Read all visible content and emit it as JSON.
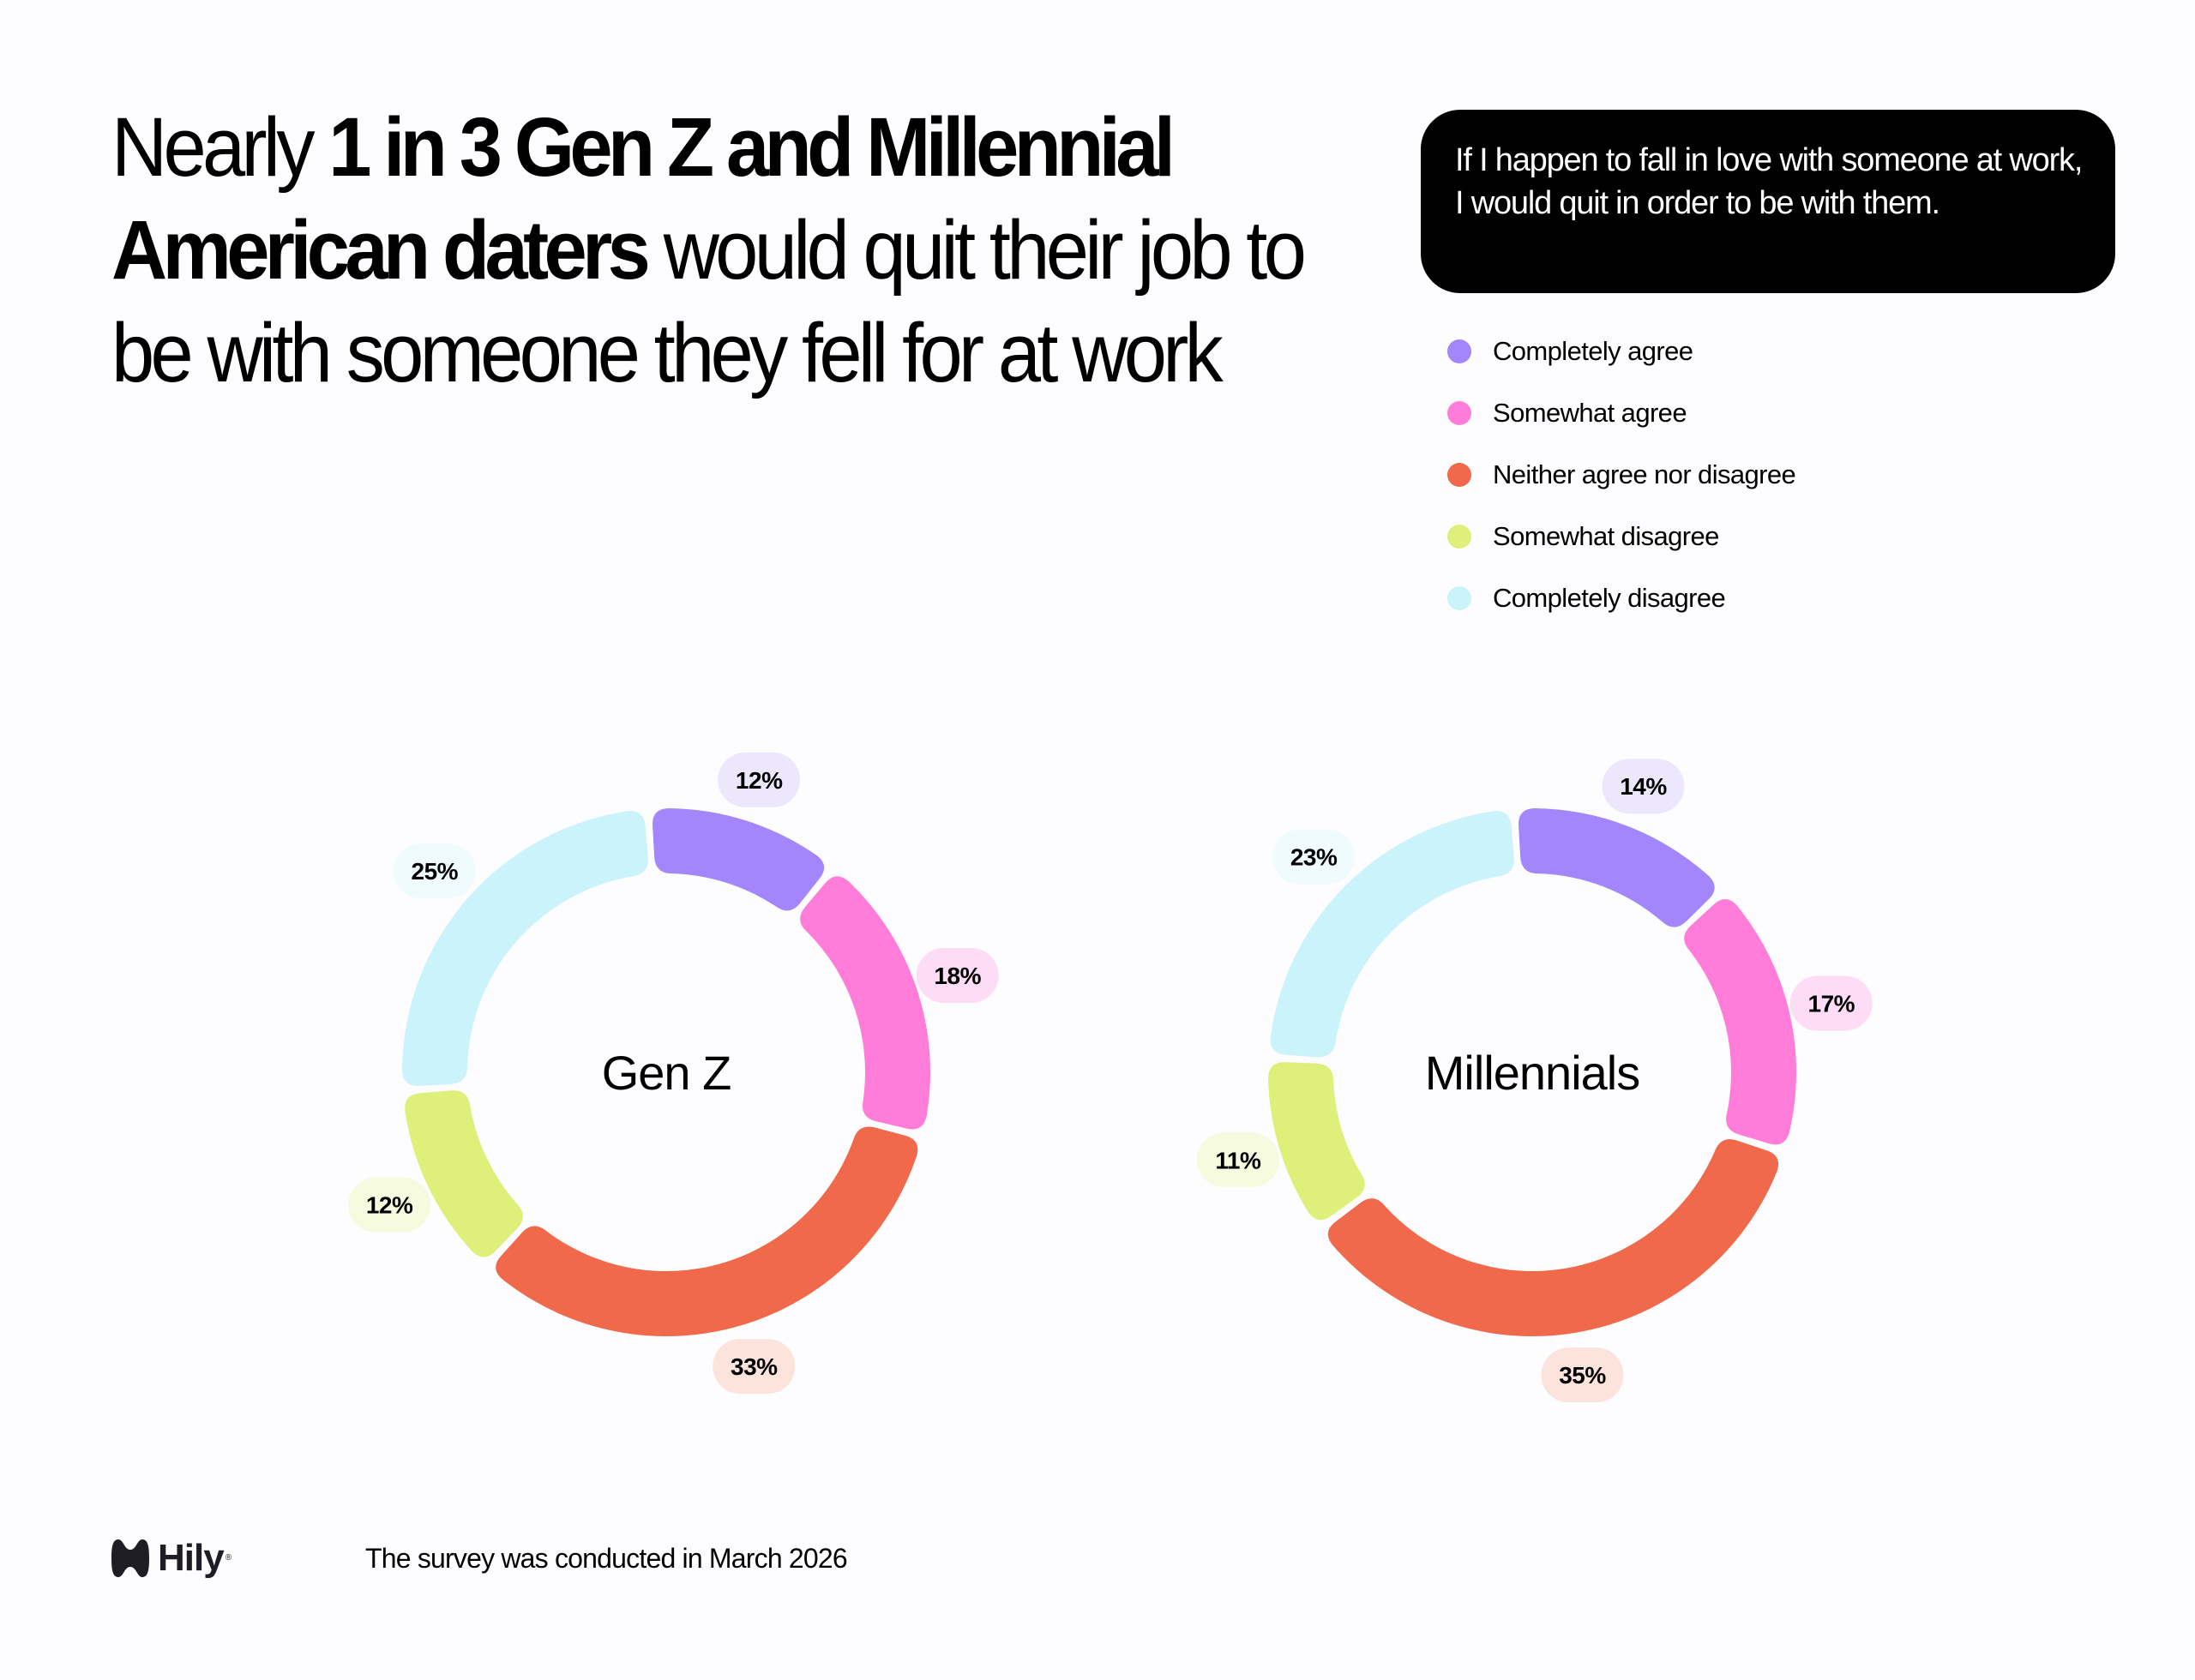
{
  "headline": {
    "prefix": "Nearly ",
    "emphasis": "1 in 3 Gen Z and Millennial American daters",
    "suffix": " would quit their job to be with someone they fell for at work"
  },
  "question": "If I happen to fall in love with someone at work, I would quit in order to be with them.",
  "legend": [
    {
      "label": "Completely agree",
      "color": "#A385FC"
    },
    {
      "label": "Somewhat agree",
      "color": "#FF7DD8"
    },
    {
      "label": "Neither agree nor disagree",
      "color": "#F0694A"
    },
    {
      "label": "Somewhat disagree",
      "color": "#DFF07A"
    },
    {
      "label": "Completely disagree",
      "color": "#CBF3FC"
    }
  ],
  "chart_data": [
    {
      "type": "pie",
      "variant": "donut",
      "title": "Gen Z",
      "categories": [
        "Completely agree",
        "Somewhat agree",
        "Neither agree nor disagree",
        "Somewhat disagree",
        "Completely disagree"
      ],
      "values": [
        12,
        18,
        33,
        12,
        25
      ],
      "labels": [
        "12%",
        "18%",
        "33%",
        "12%",
        "25%"
      ],
      "colors": [
        "#A385FC",
        "#FF7DD8",
        "#F0694A",
        "#DFF07A",
        "#CBF3FC"
      ],
      "label_backgrounds": [
        "#EDE7FD",
        "#FDDDF5",
        "#FCE3DC",
        "#F6FADF",
        "#F0FBFE"
      ],
      "legend": "top-right"
    },
    {
      "type": "pie",
      "variant": "donut",
      "title": "Millennials",
      "categories": [
        "Completely agree",
        "Somewhat agree",
        "Neither agree nor disagree",
        "Somewhat disagree",
        "Completely disagree"
      ],
      "values": [
        14,
        17,
        35,
        11,
        23
      ],
      "labels": [
        "14%",
        "17%",
        "35%",
        "11%",
        "23%"
      ],
      "colors": [
        "#A385FC",
        "#FF7DD8",
        "#F0694A",
        "#DFF07A",
        "#CBF3FC"
      ],
      "label_backgrounds": [
        "#EDE7FD",
        "#FDDDF5",
        "#FCE3DC",
        "#F6FADF",
        "#F0FBFE"
      ],
      "legend": "top-right"
    }
  ],
  "footer": {
    "brand": "Hily",
    "registered": "®",
    "note": "The survey was conducted in March 2026"
  }
}
